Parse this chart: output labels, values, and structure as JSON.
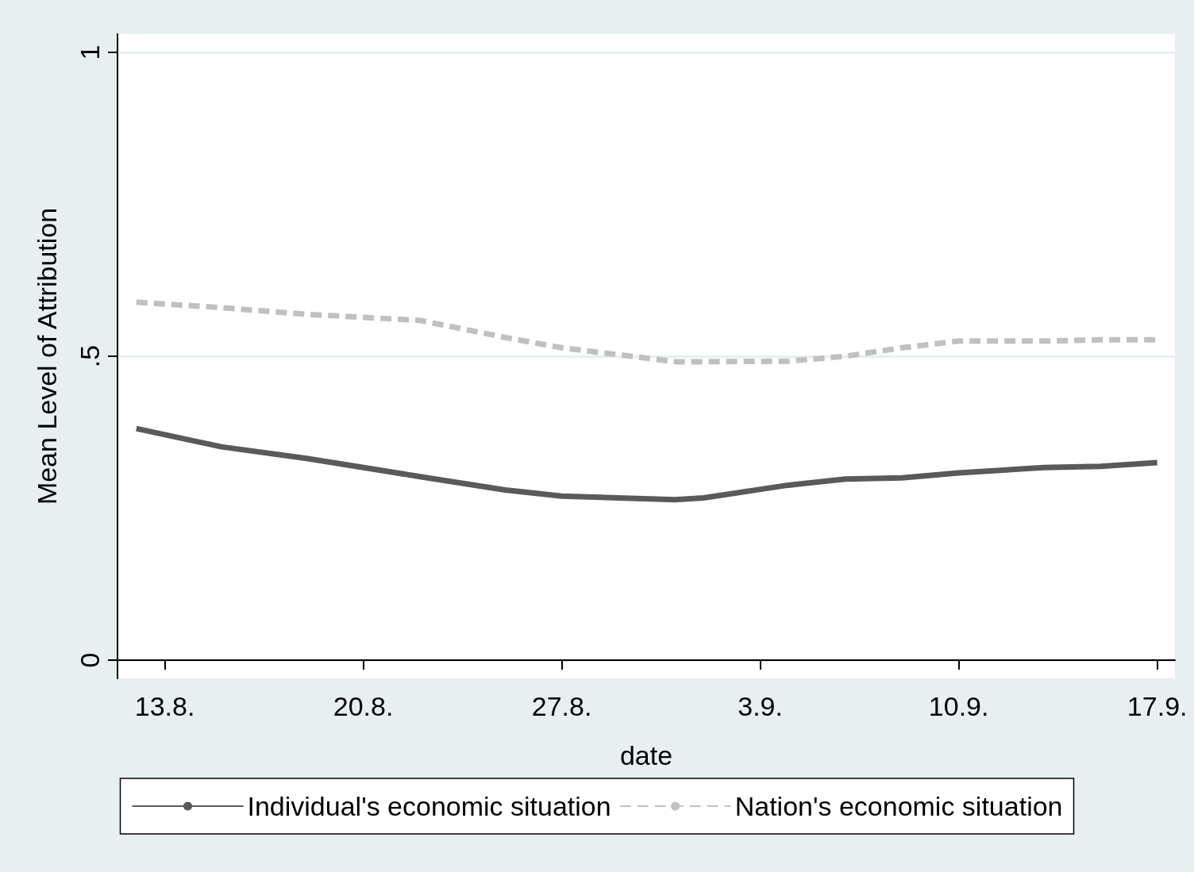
{
  "chart_data": {
    "type": "line",
    "xlabel": "date",
    "ylabel": "Mean Level of Attribution",
    "x": [
      "--08-12",
      "--08-15",
      "--08-18",
      "--08-22",
      "--08-25",
      "--08-27",
      "--08-31",
      "--09-01",
      "--09-04",
      "--09-06",
      "--09-08",
      "--09-10",
      "--09-13",
      "--09-15",
      "--09-17"
    ],
    "series": [
      {
        "name": "Individual's economic situation",
        "color": "#5a5a5a",
        "line_style": "solid",
        "values": [
          0.381,
          0.351,
          0.332,
          0.302,
          0.28,
          0.27,
          0.264,
          0.267,
          0.288,
          0.298,
          0.3,
          0.308,
          0.317,
          0.319,
          0.325
        ]
      },
      {
        "name": "Nation's economic situation",
        "color": "#c0c0c0",
        "line_style": "dashed",
        "values": [
          0.589,
          0.58,
          0.569,
          0.559,
          0.531,
          0.514,
          0.491,
          0.491,
          0.492,
          0.5,
          0.514,
          0.525,
          0.525,
          0.527,
          0.527
        ]
      }
    ],
    "xlim": [
      "--08-11T08:00",
      "--09-17T15:00"
    ],
    "xticks": [
      {
        "value": "--08-13",
        "label": "13.8."
      },
      {
        "value": "--08-20",
        "label": "20.8."
      },
      {
        "value": "--08-27",
        "label": "27.8."
      },
      {
        "value": "--09-03",
        "label": "3.9."
      },
      {
        "value": "--09-10",
        "label": "10.9."
      },
      {
        "value": "--09-17",
        "label": "17.9."
      }
    ],
    "ylim": [
      -0.03,
      1.03
    ],
    "yticks": [
      0,
      {
        "value": 0.5,
        "label": ".5"
      },
      1
    ],
    "grid": "y",
    "legend": "bottom",
    "marker": "none"
  }
}
